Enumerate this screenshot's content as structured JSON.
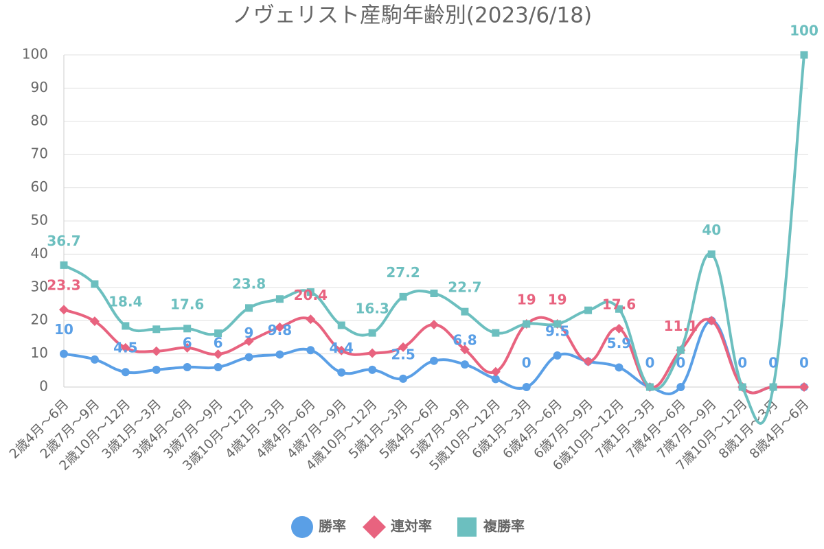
{
  "chart_data": {
    "type": "line",
    "title": "ノヴェリスト産駒年齢別(2023/6/18)",
    "categories": [
      "2歳4月～6月",
      "2歳7月～9月",
      "2歳10月～12月",
      "3歳1月～3月",
      "3歳4月～6月",
      "3歳7月～9月",
      "3歳10月～12月",
      "4歳1月～3月",
      "4歳4月～6月",
      "4歳7月～9月",
      "4歳10月～12月",
      "5歳1月～3月",
      "5歳4月～6月",
      "5歳7月～9月",
      "5歳10月～12月",
      "6歳1月～3月",
      "6歳4月～6月",
      "6歳7月～9月",
      "6歳10月～12月",
      "7歳1月～3月",
      "7歳4月～6月",
      "7歳7月～9月",
      "7歳10月～12月",
      "8歳1月～3月",
      "8歳4月～6月"
    ],
    "series": [
      {
        "name": "勝率",
        "color": "#5a9fe6",
        "marker": "circle",
        "values": [
          10,
          8.3,
          4.5,
          5.2,
          6,
          6,
          9,
          9.8,
          11.1,
          4.4,
          5.2,
          2.5,
          7.9,
          6.8,
          2.4,
          0,
          9.5,
          7.7,
          5.9,
          0,
          0,
          20,
          0,
          0,
          0
        ],
        "value_labels": [
          "10",
          null,
          "4.5",
          null,
          "6",
          "6",
          "9",
          "9.8",
          null,
          "4.4",
          null,
          "2.5",
          null,
          "6.8",
          null,
          "0",
          "9.5",
          null,
          "5.9",
          "0",
          "0",
          null,
          "0",
          "0",
          "0"
        ]
      },
      {
        "name": "連対率",
        "color": "#e8637f",
        "marker": "diamond",
        "values": [
          23.3,
          19.8,
          11.8,
          10.8,
          11.8,
          9.9,
          13.8,
          18,
          20.4,
          11,
          10.2,
          12,
          18.8,
          11.3,
          4.6,
          19,
          19,
          7.7,
          17.6,
          0,
          11.1,
          20,
          0,
          0,
          0
        ],
        "value_labels": [
          "23.3",
          null,
          null,
          null,
          null,
          null,
          null,
          null,
          "20.4",
          null,
          null,
          null,
          null,
          null,
          null,
          "19",
          "19",
          null,
          "17.6",
          null,
          "11.1",
          null,
          null,
          null,
          null
        ]
      },
      {
        "name": "複勝率",
        "color": "#6cbfbf",
        "marker": "square",
        "values": [
          36.7,
          31,
          18.4,
          17.4,
          17.6,
          16.2,
          23.8,
          26.5,
          28.6,
          18.6,
          16.3,
          27.2,
          28.2,
          22.7,
          16.3,
          19,
          19,
          23.1,
          23.5,
          0,
          11.1,
          40,
          0,
          0,
          100
        ],
        "value_labels": [
          "36.7",
          null,
          "18.4",
          null,
          "17.6",
          null,
          "23.8",
          null,
          null,
          null,
          "16.3",
          "27.2",
          null,
          "22.7",
          null,
          null,
          null,
          null,
          null,
          null,
          null,
          "40",
          null,
          null,
          "100"
        ]
      }
    ],
    "ylim": [
      0,
      100
    ],
    "yticks": [
      0,
      10,
      20,
      30,
      40,
      50,
      60,
      70,
      80,
      90,
      100
    ],
    "grid": true,
    "legend": "bottom"
  }
}
